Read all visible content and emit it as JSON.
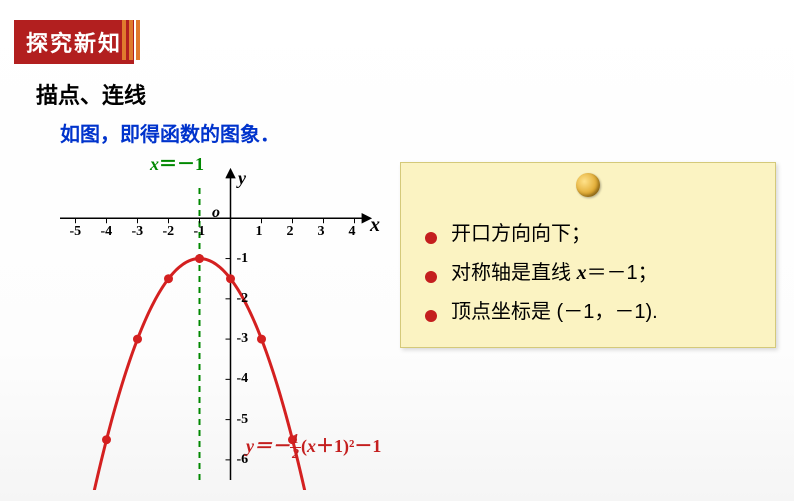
{
  "header": {
    "badge": "探究新知"
  },
  "subtitle": "描点、连线",
  "desc": "如图，即得函数的图象．",
  "chart": {
    "type": "line",
    "axis_line": {
      "label_prefix": "x",
      "label_eq": "＝－1",
      "color": "#008800",
      "x": -1
    },
    "y_axis_label": "y",
    "origin_label": "o",
    "x_axis_label": "x",
    "x_ticks": [
      -5,
      -4,
      -3,
      -2,
      -1,
      1,
      2,
      3,
      4
    ],
    "y_ticks": [
      -1,
      -2,
      -3,
      -4,
      -5,
      -6
    ],
    "xlim": [
      -5.5,
      4.5
    ],
    "ylim": [
      -6.5,
      1.2
    ],
    "curve_color": "#d42020",
    "curve_width": 3,
    "points": [
      {
        "x": -4,
        "y": -5.5
      },
      {
        "x": -3,
        "y": -3
      },
      {
        "x": -2,
        "y": -1.5
      },
      {
        "x": -1,
        "y": -1
      },
      {
        "x": 0,
        "y": -1.5
      },
      {
        "x": 1,
        "y": -3
      },
      {
        "x": 2,
        "y": -5.5
      }
    ],
    "point_color": "#d42020",
    "point_radius": 4.5,
    "func_label": {
      "pre": "y＝－",
      "num": "1",
      "den": "2",
      "post": "(x＋1)²－1",
      "color": "#c41e1e"
    },
    "tick_fontsize": 14,
    "grid": false,
    "background_color": "#ffffff"
  },
  "notes": {
    "bullet_color": "#c41e1e",
    "card_bg": "#fbf3c2",
    "items": [
      {
        "text_a": "开口方向向下；",
        "var": "",
        "text_b": ""
      },
      {
        "text_a": "对称轴是直线 ",
        "var": "x",
        "text_b": "＝－1；"
      },
      {
        "text_a": "顶点坐标是 (－1，－1).",
        "var": "",
        "text_b": ""
      }
    ]
  }
}
